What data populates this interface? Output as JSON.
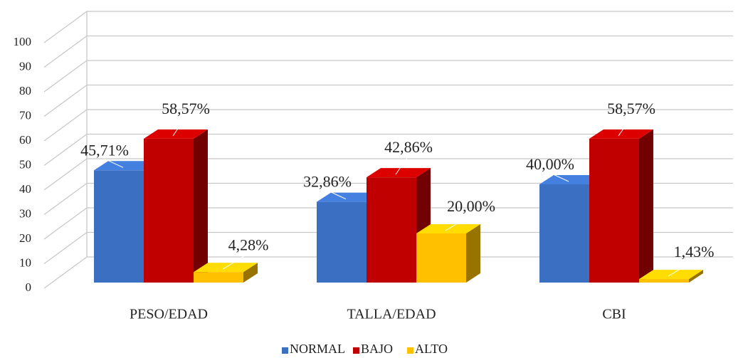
{
  "chart_data": {
    "type": "bar3d",
    "categories": [
      "PESO/EDAD",
      "TALLA/EDAD",
      "CBI"
    ],
    "series": [
      {
        "name": "NORMAL",
        "color": "#3b6fc2",
        "values": [
          45.71,
          32.86,
          40.0
        ],
        "value_labels": [
          "45,71%",
          "32,86%",
          "40,00%"
        ]
      },
      {
        "name": "BAJO",
        "color": "#c00000",
        "values": [
          58.57,
          42.86,
          58.57
        ],
        "value_labels": [
          "58,57%",
          "42,86%",
          "58,57%"
        ]
      },
      {
        "name": "ALTO",
        "color": "#ffc000",
        "values": [
          4.28,
          20.0,
          1.43
        ],
        "value_labels": [
          "4,28%",
          "20,00%",
          "1,43%"
        ]
      }
    ],
    "ylim": [
      0,
      100
    ],
    "yticks": [
      0,
      10,
      20,
      30,
      40,
      50,
      60,
      70,
      80,
      90,
      100
    ],
    "grid": true,
    "legend": "bottom"
  }
}
